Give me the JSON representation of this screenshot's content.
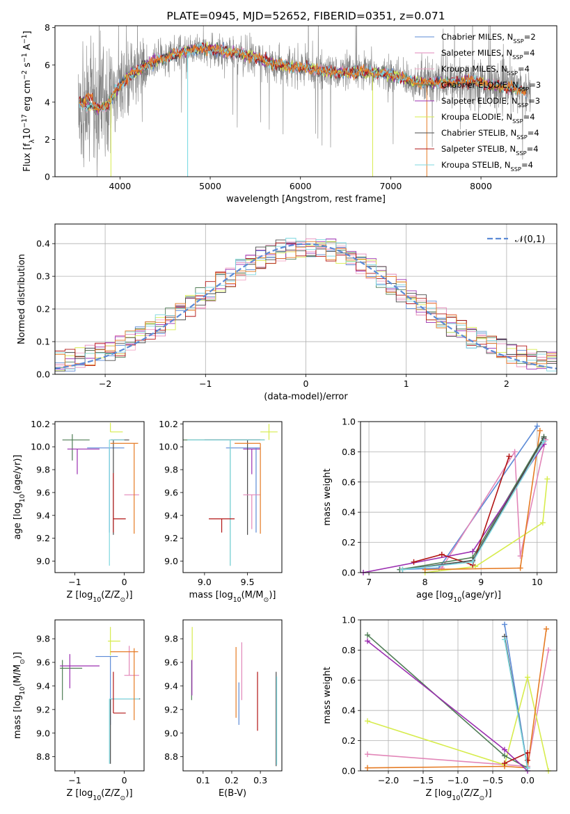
{
  "colors": {
    "chabrier_miles": "#5b8ad6",
    "salpeter_miles": "#e286b8",
    "kroupa_miles": "#f2a7c6",
    "chabrier_elodie": "#4f7d55",
    "salpeter_elodie": "#9b2fb0",
    "kroupa_elodie": "#d7ec4d",
    "chabrier_stelib": "#4a4a4a",
    "salpeter_stelib": "#b21414",
    "kroupa_stelib": "#7dd7df",
    "orange": "#e57a22",
    "data_gray": "#808080",
    "cyan": "#6fd6e0",
    "normal_curve": "#5b8ad6"
  },
  "chart_data": [
    {
      "id": "spectrum",
      "type": "line",
      "title": "PLATE=0945, MJD=52652, FIBERID=0351, z=0.071",
      "xlabel": "wavelength [Angstrom, rest frame]",
      "ylabel": "Flux [f$_\\lambda$10$^{-17}$ erg cm$^{-2}$ s$^{-1}$ A$^{-1}$]",
      "xlim": [
        3280,
        8840
      ],
      "ylim": [
        0,
        8.1
      ],
      "xticks": [
        4000,
        5000,
        6000,
        7000,
        8000
      ],
      "yticks": [
        0,
        2,
        4,
        6,
        8
      ],
      "legend_position": "top-right",
      "legend": [
        {
          "text": "Chabrier MILES, N",
          "sub": "SSP",
          "tail": "=2",
          "color": "#5b8ad6"
        },
        {
          "text": "Salpeter MILES, N",
          "sub": "SSP",
          "tail": "=4",
          "color": "#e286b8"
        },
        {
          "text": "Kroupa MILES, N",
          "sub": "SSP",
          "tail": "=4",
          "color": "#f2a7c6"
        },
        {
          "text": "Chabrier ELODIE, N",
          "sub": "SSP",
          "tail": "=3",
          "color": "#4f7d55"
        },
        {
          "text": "Salpeter ELODIE, N",
          "sub": "SSP",
          "tail": "=3",
          "color": "#9b2fb0"
        },
        {
          "text": "Kroupa ELODIE, N",
          "sub": "SSP",
          "tail": "=4",
          "color": "#d7ec4d"
        },
        {
          "text": "Chabrier STELIB, N",
          "sub": "SSP",
          "tail": "=4",
          "color": "#4a4a4a"
        },
        {
          "text": "Salpeter STELIB, N",
          "sub": "SSP",
          "tail": "=4",
          "color": "#b21414"
        },
        {
          "text": "Kroupa STELIB, N",
          "sub": "SSP",
          "tail": "=4",
          "color": "#7dd7df"
        }
      ],
      "model_continuum": {
        "x": [
          3550,
          3650,
          3750,
          3850,
          3950,
          4100,
          4300,
          4500,
          4700,
          4900,
          5100,
          5300,
          5500,
          5700,
          5900,
          6100,
          6300,
          6500,
          6700,
          6900,
          7100,
          7300,
          7500,
          7700,
          7900,
          8100,
          8300,
          8500
        ],
        "y": [
          4.0,
          3.8,
          3.7,
          3.8,
          4.6,
          5.4,
          6.0,
          6.4,
          6.7,
          6.9,
          6.8,
          6.6,
          6.4,
          6.1,
          5.9,
          5.8,
          5.6,
          5.6,
          5.6,
          5.55,
          5.35,
          5.05,
          5.05,
          5.05,
          5.15,
          4.9,
          4.8,
          4.55
        ]
      }
    },
    {
      "id": "residual_hist",
      "type": "histogram",
      "xlabel": "(data-model)/error",
      "ylabel": "Normed distribution",
      "xlim": [
        -2.5,
        2.5
      ],
      "ylim": [
        0,
        0.46
      ],
      "xticks": [
        -2,
        -1,
        0,
        1,
        2
      ],
      "yticks": [
        0.0,
        0.1,
        0.2,
        0.3,
        0.4
      ],
      "grid": true,
      "legend": "$\\mathcal{N}(0,1)$",
      "bin_width": 0.1
    },
    {
      "id": "age_vs_Z",
      "type": "errorbar",
      "xlabel": "Z [log$_{10}$(Z/Z$_\\odot$)]",
      "ylabel": "age  [log$_{10}$(age/yr)]",
      "xlim": [
        -1.4,
        0.4
      ],
      "ylim": [
        8.9,
        10.22
      ],
      "xticks": [
        -1,
        0
      ],
      "yticks": [
        9.0,
        9.2,
        9.4,
        9.6,
        9.8,
        10.0,
        10.2
      ],
      "points": [
        {
          "x": -1.05,
          "y": 10.06,
          "xerr": [
            0.2,
            0.35
          ],
          "yerr": [
            0.18,
            0.05
          ],
          "color": "#4f7d55"
        },
        {
          "x": -0.95,
          "y": 9.98,
          "xerr": [
            0.2,
            0.45
          ],
          "yerr": [
            0.22,
            0.0
          ],
          "color": "#9b2fb0"
        },
        {
          "x": -0.28,
          "y": 10.13,
          "xerr": [
            0.0,
            0.25
          ],
          "yerr": [
            0.0,
            0.08
          ],
          "color": "#d7ec4d"
        },
        {
          "x": -0.3,
          "y": 9.99,
          "xerr": [
            0.45,
            0.3
          ],
          "yerr": [
            0.74,
            0.0
          ],
          "color": "#5b8ad6"
        },
        {
          "x": -0.22,
          "y": 10.06,
          "xerr": [
            0.05,
            0.32
          ],
          "yerr": [
            0.83,
            0.0
          ],
          "color": "#4a4a4a"
        },
        {
          "x": -0.3,
          "y": 10.06,
          "xerr": [
            0.0,
            0.3
          ],
          "yerr": [
            1.1,
            0.0
          ],
          "color": "#7dd7df"
        },
        {
          "x": 0.1,
          "y": 9.58,
          "xerr": [
            0.1,
            0.2
          ],
          "yerr": [
            0.0,
            0.0
          ],
          "color": "#e286b8"
        },
        {
          "x": 0.2,
          "y": 10.03,
          "xerr": [
            0.48,
            0.08
          ],
          "yerr": [
            0.79,
            0.0
          ],
          "color": "#e57a22"
        },
        {
          "x": -0.22,
          "y": 9.37,
          "xerr": [
            0.0,
            0.25
          ],
          "yerr": [
            0.12,
            0.4
          ],
          "color": "#b21414"
        }
      ]
    },
    {
      "id": "age_vs_mass",
      "type": "errorbar",
      "xlabel": "mass [log$_{10}$(M/M$_\\odot$)]",
      "ylabel": "",
      "xlim": [
        8.75,
        9.9
      ],
      "ylim": [
        8.9,
        10.22
      ],
      "xticks": [
        9.0,
        9.5
      ],
      "yticks": [
        9.0,
        9.2,
        9.4,
        9.6,
        9.8,
        10.0,
        10.2
      ],
      "points": [
        {
          "x": 9.3,
          "y": 10.06,
          "xerr": [
            0.55,
            0.4
          ],
          "yerr": [
            1.1,
            0.0
          ],
          "color": "#4f7d55"
        },
        {
          "x": 9.55,
          "y": 9.98,
          "xerr": [
            0.1,
            0.1
          ],
          "yerr": [
            0.22,
            0.0
          ],
          "color": "#9b2fb0"
        },
        {
          "x": 9.75,
          "y": 10.13,
          "xerr": [
            0.1,
            0.1
          ],
          "yerr": [
            0.07,
            0.07
          ],
          "color": "#d7ec4d"
        },
        {
          "x": 9.6,
          "y": 9.99,
          "xerr": [
            0.35,
            0.05
          ],
          "yerr": [
            0.74,
            0.0
          ],
          "color": "#5b8ad6"
        },
        {
          "x": 9.5,
          "y": 10.06,
          "xerr": [
            0.5,
            0.15
          ],
          "yerr": [
            0.83,
            0.0
          ],
          "color": "#4a4a4a"
        },
        {
          "x": 9.3,
          "y": 10.06,
          "xerr": [
            0.5,
            0.4
          ],
          "yerr": [
            1.1,
            0.0
          ],
          "color": "#7dd7df"
        },
        {
          "x": 9.55,
          "y": 9.58,
          "xerr": [
            0.1,
            0.1
          ],
          "yerr": [
            0.3,
            0.0
          ],
          "color": "#e286b8"
        },
        {
          "x": 9.65,
          "y": 10.03,
          "xerr": [
            0.3,
            0.0
          ],
          "yerr": [
            0.79,
            0.0
          ],
          "color": "#e57a22"
        },
        {
          "x": 9.2,
          "y": 9.37,
          "xerr": [
            0.15,
            0.15
          ],
          "yerr": [
            0.12,
            0.0
          ],
          "color": "#b21414"
        }
      ]
    },
    {
      "id": "massweight_vs_age",
      "type": "line",
      "xlabel": "age  [log$_{10}$(age/yr)]",
      "ylabel": "mass weight",
      "xlim": [
        6.85,
        10.35
      ],
      "ylim": [
        0,
        1.0
      ],
      "xticks": [
        7,
        8,
        9,
        10
      ],
      "yticks": [
        0.0,
        0.2,
        0.4,
        0.6,
        0.8,
        1.0
      ],
      "grid": true,
      "series": [
        {
          "color": "#5b8ad6",
          "x": [
            7.55,
            8.25,
            10.0
          ],
          "y": [
            0.02,
            0.03,
            0.97
          ]
        },
        {
          "color": "#e286b8",
          "x": [
            8.3,
            9.6,
            9.7,
            10.15
          ],
          "y": [
            0.03,
            0.8,
            0.11,
            0.88
          ]
        },
        {
          "color": "#d7ec4d",
          "x": [
            8.0,
            8.9,
            10.1,
            10.18
          ],
          "y": [
            0.0,
            0.04,
            0.33,
            0.62
          ]
        },
        {
          "color": "#e57a22",
          "x": [
            8.0,
            9.7,
            10.05
          ],
          "y": [
            0.02,
            0.03,
            0.94
          ]
        },
        {
          "color": "#4f7d55",
          "x": [
            7.55,
            8.85,
            10.12
          ],
          "y": [
            0.02,
            0.1,
            0.9
          ]
        },
        {
          "color": "#9b2fb0",
          "x": [
            6.9,
            8.85,
            10.12
          ],
          "y": [
            0.0,
            0.14,
            0.85
          ]
        },
        {
          "color": "#b21414",
          "x": [
            7.8,
            8.3,
            8.85,
            9.5
          ],
          "y": [
            0.07,
            0.12,
            0.05,
            0.77
          ]
        },
        {
          "color": "#4a4a4a",
          "x": [
            7.6,
            8.85,
            10.12
          ],
          "y": [
            0.02,
            0.08,
            0.89
          ]
        },
        {
          "color": "#7dd7df",
          "x": [
            7.6,
            8.85,
            10.12
          ],
          "y": [
            0.02,
            0.07,
            0.87
          ]
        }
      ]
    },
    {
      "id": "mass_vs_Z",
      "type": "errorbar",
      "xlabel": "Z [log$_{10}$(Z/Z$_\\odot$)]",
      "ylabel": "mass [log$_{10}$(M/M$_\\odot$)]",
      "xlim": [
        -1.4,
        0.4
      ],
      "ylim": [
        8.68,
        9.96
      ],
      "xticks": [
        -1,
        0
      ],
      "yticks": [
        8.8,
        9.0,
        9.2,
        9.4,
        9.6,
        9.8
      ],
      "points": [
        {
          "x": -1.25,
          "y": 9.55,
          "xerr": [
            0.05,
            0.4
          ],
          "yerr": [
            0.27,
            0.07
          ],
          "color": "#4f7d55"
        },
        {
          "x": -1.1,
          "y": 9.57,
          "xerr": [
            0.2,
            0.6
          ],
          "yerr": [
            0.19,
            0.1
          ],
          "color": "#9b2fb0"
        },
        {
          "x": -0.28,
          "y": 9.78,
          "xerr": [
            0.05,
            0.2
          ],
          "yerr": [
            0.12,
            0.12
          ],
          "color": "#d7ec4d"
        },
        {
          "x": -0.28,
          "y": 9.65,
          "xerr": [
            0.3,
            0.15
          ],
          "yerr": [
            0.58,
            0.0
          ],
          "color": "#5b8ad6"
        },
        {
          "x": -0.28,
          "y": 9.29,
          "xerr": [
            0.0,
            0.6
          ],
          "yerr": [
            0.55,
            0.0
          ],
          "color": "#4a4a4a"
        },
        {
          "x": -0.3,
          "y": 9.29,
          "xerr": [
            0.0,
            0.6
          ],
          "yerr": [
            0.55,
            0.0
          ],
          "color": "#7dd7df"
        },
        {
          "x": 0.1,
          "y": 9.49,
          "xerr": [
            0.1,
            0.2
          ],
          "yerr": [
            0.0,
            0.25
          ],
          "color": "#e286b8"
        },
        {
          "x": 0.2,
          "y": 9.69,
          "xerr": [
            0.48,
            0.08
          ],
          "yerr": [
            0.58,
            0.03
          ],
          "color": "#e57a22"
        },
        {
          "x": -0.22,
          "y": 9.17,
          "xerr": [
            0.0,
            0.25
          ],
          "yerr": [
            0.0,
            0.35
          ],
          "color": "#b21414"
        }
      ]
    },
    {
      "id": "mass_vs_ebv",
      "type": "errorbar",
      "xlabel": "E(B-V)",
      "ylabel": "",
      "xlim": [
        0.03,
        0.375
      ],
      "ylim": [
        8.68,
        9.96
      ],
      "xticks": [
        0.1,
        0.2,
        0.3
      ],
      "yticks": [
        8.8,
        9.0,
        9.2,
        9.4,
        9.6,
        9.8
      ],
      "points": [
        {
          "x": 0.06,
          "y": 9.45,
          "yerr": [
            0.17,
            0.17
          ],
          "color": "#4f7d55"
        },
        {
          "x": 0.061,
          "y": 9.45,
          "yerr": [
            0.13,
            0.17
          ],
          "color": "#9b2fb0"
        },
        {
          "x": 0.062,
          "y": 9.72,
          "yerr": [
            0.1,
            0.18
          ],
          "color": "#d7ec4d"
        },
        {
          "x": 0.215,
          "y": 9.43,
          "yerr": [
            0.3,
            0.3
          ],
          "color": "#e57a22"
        },
        {
          "x": 0.225,
          "y": 9.3,
          "yerr": [
            0.23,
            0.13
          ],
          "color": "#5b8ad6"
        },
        {
          "x": 0.235,
          "y": 9.5,
          "yerr": [
            0.22,
            0.27
          ],
          "color": "#e286b8"
        },
        {
          "x": 0.29,
          "y": 9.25,
          "yerr": [
            0.23,
            0.27
          ],
          "color": "#b21414"
        },
        {
          "x": 0.355,
          "y": 9.1,
          "yerr": [
            0.38,
            0.42
          ],
          "color": "#4a4a4a"
        },
        {
          "x": 0.357,
          "y": 9.1,
          "yerr": [
            0.37,
            0.38
          ],
          "color": "#7dd7df"
        }
      ]
    },
    {
      "id": "massweight_vs_Z",
      "type": "line",
      "xlabel": "Z [log$_{10}$(Z/Z$_\\odot$)]",
      "ylabel": "mass weight",
      "xlim": [
        -2.4,
        0.42
      ],
      "ylim": [
        0,
        1.0
      ],
      "xticks": [
        -2.0,
        -1.5,
        -1.0,
        -0.5,
        0.0
      ],
      "xticklabels": [
        "−2.0",
        "−1.5",
        "−1.0",
        "−0.5",
        "0.0"
      ],
      "yticks": [
        0.0,
        0.2,
        0.4,
        0.6,
        0.8,
        1.0
      ],
      "grid": true,
      "series": [
        {
          "color": "#5b8ad6",
          "x": [
            -0.33,
            0.0
          ],
          "y": [
            0.97,
            0.02
          ]
        },
        {
          "color": "#e286b8",
          "x": [
            -2.3,
            0.0,
            0.3
          ],
          "y": [
            0.11,
            0.03,
            0.8
          ]
        },
        {
          "color": "#d7ec4d",
          "x": [
            -2.3,
            -0.33,
            0.0,
            0.3
          ],
          "y": [
            0.33,
            0.04,
            0.62,
            0.0
          ]
        },
        {
          "color": "#e57a22",
          "x": [
            -2.3,
            -0.33,
            0.0,
            0.27
          ],
          "y": [
            0.02,
            0.03,
            0.02,
            0.94
          ]
        },
        {
          "color": "#4f7d55",
          "x": [
            -2.3,
            -0.33,
            0.0
          ],
          "y": [
            0.9,
            0.1,
            0.02
          ]
        },
        {
          "color": "#9b2fb0",
          "x": [
            -2.3,
            -0.33,
            0.0
          ],
          "y": [
            0.86,
            0.14,
            0.0
          ]
        },
        {
          "color": "#b21414",
          "x": [
            -0.33,
            0.0,
            0.0
          ],
          "y": [
            0.05,
            0.12,
            0.07
          ]
        },
        {
          "color": "#4a4a4a",
          "x": [
            -0.33,
            0.0
          ],
          "y": [
            0.89,
            0.02
          ]
        },
        {
          "color": "#7dd7df",
          "x": [
            -0.33,
            0.0
          ],
          "y": [
            0.87,
            0.02
          ]
        }
      ]
    }
  ]
}
